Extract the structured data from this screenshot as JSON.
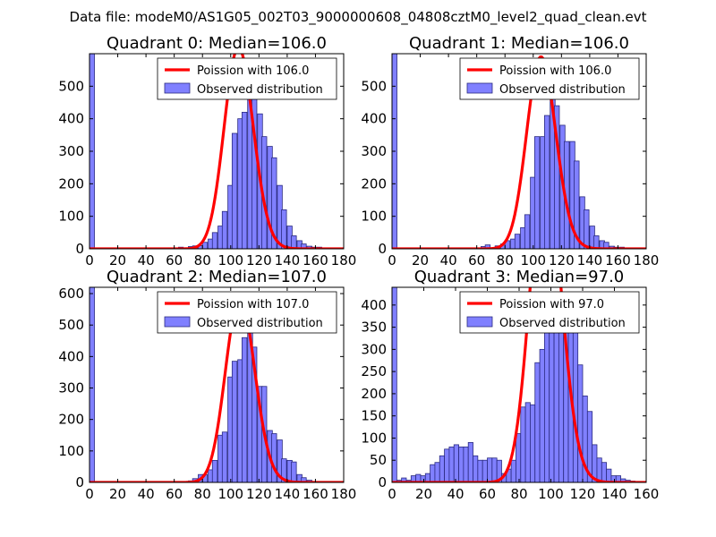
{
  "figure_title": "Data file: modeM0/AS1G05_002T03_9000000608_04808cztM0_level2_quad_clean.evt",
  "colors": {
    "bar_fill": "#8080ff",
    "bar_edge": "#2a2a80",
    "poisson_line": "#ff0000",
    "axes": "#000000"
  },
  "chart_data": [
    {
      "type": "bar",
      "title": "Quadrant 0: Median=106.0",
      "xlim": [
        0,
        180
      ],
      "ylim": [
        0,
        600
      ],
      "xticks": [
        0,
        20,
        40,
        60,
        80,
        100,
        120,
        140,
        160,
        180
      ],
      "yticks": [
        0,
        100,
        200,
        300,
        400,
        500
      ],
      "bin_width": 3.5,
      "legend": [
        "Poission with 106.0",
        "Observed distribution"
      ],
      "bins": [
        [
          0,
          600
        ],
        [
          35,
          1
        ],
        [
          52,
          1
        ],
        [
          59,
          2
        ],
        [
          63,
          5
        ],
        [
          66,
          3
        ],
        [
          70,
          7
        ],
        [
          73,
          9
        ],
        [
          77,
          10
        ],
        [
          80,
          20
        ],
        [
          84,
          30
        ],
        [
          87,
          50
        ],
        [
          91,
          70
        ],
        [
          94,
          115
        ],
        [
          98,
          195
        ],
        [
          101,
          355
        ],
        [
          105,
          400
        ],
        [
          108,
          420
        ],
        [
          112,
          560
        ],
        [
          115,
          480
        ],
        [
          119,
          415
        ],
        [
          122,
          345
        ],
        [
          126,
          315
        ],
        [
          129,
          280
        ],
        [
          133,
          195
        ],
        [
          136,
          120
        ],
        [
          140,
          70
        ],
        [
          143,
          40
        ],
        [
          147,
          25
        ],
        [
          150,
          15
        ],
        [
          154,
          8
        ],
        [
          157,
          5
        ],
        [
          161,
          5
        ],
        [
          164,
          2
        ]
      ],
      "poisson_lambda": 106.0
    },
    {
      "type": "bar",
      "title": "Quadrant 1: Median=106.0",
      "xlim": [
        0,
        180
      ],
      "ylim": [
        0,
        600
      ],
      "xticks": [
        0,
        20,
        40,
        60,
        80,
        100,
        120,
        140,
        160,
        180
      ],
      "yticks": [
        0,
        100,
        200,
        300,
        400,
        500
      ],
      "bin_width": 3.5,
      "legend": [
        "Poission with 106.0",
        "Observed distribution"
      ],
      "bins": [
        [
          0,
          600
        ],
        [
          35,
          1
        ],
        [
          52,
          1
        ],
        [
          59,
          2
        ],
        [
          63,
          7
        ],
        [
          66,
          12
        ],
        [
          70,
          3
        ],
        [
          73,
          9
        ],
        [
          77,
          15
        ],
        [
          80,
          25
        ],
        [
          84,
          30
        ],
        [
          87,
          45
        ],
        [
          91,
          65
        ],
        [
          94,
          105
        ],
        [
          98,
          220
        ],
        [
          101,
          345
        ],
        [
          105,
          345
        ],
        [
          108,
          410
        ],
        [
          112,
          510
        ],
        [
          115,
          440
        ],
        [
          119,
          380
        ],
        [
          122,
          330
        ],
        [
          126,
          330
        ],
        [
          129,
          270
        ],
        [
          133,
          160
        ],
        [
          136,
          120
        ],
        [
          140,
          70
        ],
        [
          143,
          40
        ],
        [
          147,
          25
        ],
        [
          150,
          20
        ],
        [
          154,
          8
        ],
        [
          157,
          5
        ],
        [
          161,
          5
        ],
        [
          164,
          2
        ]
      ],
      "poisson_lambda": 106.0
    },
    {
      "type": "bar",
      "title": "Quadrant 2: Median=107.0",
      "xlim": [
        0,
        180
      ],
      "ylim": [
        0,
        620
      ],
      "xticks": [
        0,
        20,
        40,
        60,
        80,
        100,
        120,
        140,
        160,
        180
      ],
      "yticks": [
        0,
        100,
        200,
        300,
        400,
        500,
        600
      ],
      "bin_width": 3.5,
      "legend": [
        "Poission with 107.0",
        "Observed distribution"
      ],
      "bins": [
        [
          0,
          620
        ],
        [
          35,
          1
        ],
        [
          52,
          1
        ],
        [
          59,
          1
        ],
        [
          63,
          2
        ],
        [
          70,
          5
        ],
        [
          73,
          12
        ],
        [
          77,
          25
        ],
        [
          80,
          25
        ],
        [
          84,
          40
        ],
        [
          87,
          70
        ],
        [
          91,
          150
        ],
        [
          94,
          160
        ],
        [
          98,
          335
        ],
        [
          101,
          385
        ],
        [
          105,
          390
        ],
        [
          108,
          460
        ],
        [
          112,
          540
        ],
        [
          115,
          430
        ],
        [
          119,
          305
        ],
        [
          122,
          305
        ],
        [
          126,
          165
        ],
        [
          129,
          155
        ],
        [
          133,
          135
        ],
        [
          136,
          75
        ],
        [
          140,
          70
        ],
        [
          143,
          65
        ],
        [
          147,
          25
        ],
        [
          150,
          15
        ],
        [
          154,
          7
        ],
        [
          157,
          3
        ],
        [
          161,
          2
        ]
      ],
      "poisson_lambda": 107.0
    },
    {
      "type": "bar",
      "title": "Quadrant 3: Median=97.0",
      "xlim": [
        0,
        160
      ],
      "ylim": [
        0,
        440
      ],
      "xticks": [
        0,
        20,
        40,
        60,
        80,
        100,
        120,
        140,
        160
      ],
      "yticks": [
        0,
        50,
        100,
        150,
        200,
        250,
        300,
        350,
        400
      ],
      "bin_width": 3.0,
      "legend": [
        "Poission with 97.0",
        "Observed distribution"
      ],
      "bins": [
        [
          0,
          440
        ],
        [
          3,
          5
        ],
        [
          6,
          10
        ],
        [
          9,
          5
        ],
        [
          12,
          15
        ],
        [
          15,
          18
        ],
        [
          18,
          15
        ],
        [
          21,
          20
        ],
        [
          24,
          40
        ],
        [
          27,
          45
        ],
        [
          30,
          60
        ],
        [
          33,
          75
        ],
        [
          36,
          80
        ],
        [
          39,
          85
        ],
        [
          42,
          80
        ],
        [
          45,
          80
        ],
        [
          48,
          90
        ],
        [
          51,
          60
        ],
        [
          54,
          50
        ],
        [
          57,
          50
        ],
        [
          60,
          55
        ],
        [
          63,
          55
        ],
        [
          66,
          50
        ],
        [
          69,
          20
        ],
        [
          72,
          30
        ],
        [
          75,
          50
        ],
        [
          78,
          110
        ],
        [
          81,
          170
        ],
        [
          84,
          180
        ],
        [
          87,
          175
        ],
        [
          90,
          270
        ],
        [
          93,
          300
        ],
        [
          96,
          350
        ],
        [
          99,
          420
        ],
        [
          102,
          415
        ],
        [
          105,
          380
        ],
        [
          108,
          380
        ],
        [
          111,
          340
        ],
        [
          114,
          360
        ],
        [
          117,
          265
        ],
        [
          120,
          195
        ],
        [
          123,
          160
        ],
        [
          126,
          85
        ],
        [
          129,
          55
        ],
        [
          132,
          45
        ],
        [
          135,
          30
        ],
        [
          138,
          15
        ],
        [
          141,
          15
        ],
        [
          144,
          8
        ],
        [
          147,
          5
        ],
        [
          150,
          3
        ],
        [
          153,
          2
        ]
      ],
      "poisson_lambda": 97.0
    }
  ]
}
